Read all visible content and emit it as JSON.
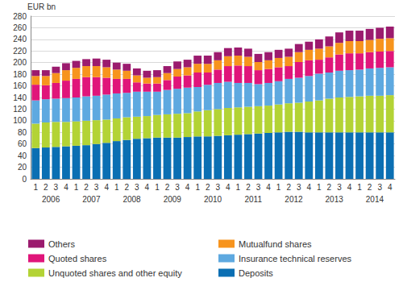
{
  "chart_data": {
    "type": "bar",
    "stacked": true,
    "grid": true,
    "legend": "bottom",
    "y_label": "EUR bn",
    "categories": [
      "1",
      "2",
      "3",
      "4",
      "1",
      "2",
      "3",
      "4",
      "1",
      "2",
      "3",
      "4",
      "1",
      "2",
      "3",
      "4",
      "1",
      "2",
      "3",
      "4",
      "1",
      "2",
      "3",
      "4",
      "1",
      "2",
      "3",
      "4",
      "1",
      "2",
      "3",
      "4",
      "1",
      "2",
      "3",
      "4"
    ],
    "groups": [
      "2006",
      "2007",
      "2008",
      "2009",
      "2010",
      "2011",
      "2012",
      "2013",
      "2014"
    ],
    "ylim": [
      0,
      280
    ],
    "yticks": [
      0,
      20,
      40,
      60,
      80,
      100,
      120,
      140,
      160,
      180,
      200,
      220,
      240,
      260,
      280
    ],
    "series": [
      {
        "name": "Deposits",
        "color": "#0b6fb3",
        "values": [
          53,
          54,
          55,
          56,
          57,
          58,
          60,
          62,
          65,
          67,
          69,
          70,
          71,
          71,
          71,
          72,
          73,
          73,
          74,
          75,
          76,
          77,
          78,
          79,
          80,
          81,
          81,
          80,
          80,
          80,
          80,
          80,
          80,
          80,
          80,
          80
        ]
      },
      {
        "name": "Unquoted shares and other equity",
        "color": "#b3d335",
        "values": [
          42,
          43,
          43,
          42,
          42,
          42,
          41,
          40,
          39,
          39,
          38,
          38,
          39,
          40,
          41,
          41,
          43,
          45,
          46,
          47,
          47,
          47,
          47,
          47,
          48,
          49,
          50,
          53,
          55,
          58,
          60,
          61,
          62,
          63,
          63,
          64
        ]
      },
      {
        "name": "Insurance technical reserves",
        "color": "#5ea9e0",
        "values": [
          40,
          40,
          40,
          41,
          41,
          42,
          42,
          43,
          43,
          42,
          43,
          42,
          40,
          42,
          43,
          44,
          42,
          44,
          45,
          45,
          42,
          41,
          38,
          39,
          40,
          42,
          43,
          44,
          46,
          45,
          46,
          46,
          46,
          47,
          48,
          48
        ]
      },
      {
        "name": "Quoted shares",
        "color": "#e0157a",
        "values": [
          27,
          24,
          27,
          30,
          32,
          33,
          32,
          29,
          25,
          24,
          16,
          14,
          14,
          17,
          21,
          21,
          25,
          21,
          23,
          27,
          30,
          29,
          24,
          24,
          24,
          22,
          27,
          27,
          24,
          26,
          28,
          29,
          28,
          28,
          28,
          28
        ]
      },
      {
        "name": "Mutualfund shares",
        "color": "#f7941d",
        "values": [
          15,
          16,
          17,
          18,
          19,
          19,
          19,
          18,
          16,
          14,
          12,
          10,
          11,
          12,
          13,
          14,
          15,
          15,
          16,
          17,
          17,
          16,
          14,
          15,
          16,
          16,
          17,
          18,
          19,
          19,
          20,
          21,
          21,
          21,
          22,
          22
        ]
      },
      {
        "name": "Others",
        "color": "#9b1b6e",
        "values": [
          10,
          10,
          11,
          12,
          12,
          12,
          13,
          13,
          12,
          12,
          12,
          12,
          12,
          12,
          13,
          13,
          14,
          14,
          14,
          14,
          14,
          14,
          14,
          14,
          14,
          14,
          14,
          14,
          16,
          17,
          18,
          18,
          18,
          19,
          19,
          20
        ]
      }
    ]
  }
}
